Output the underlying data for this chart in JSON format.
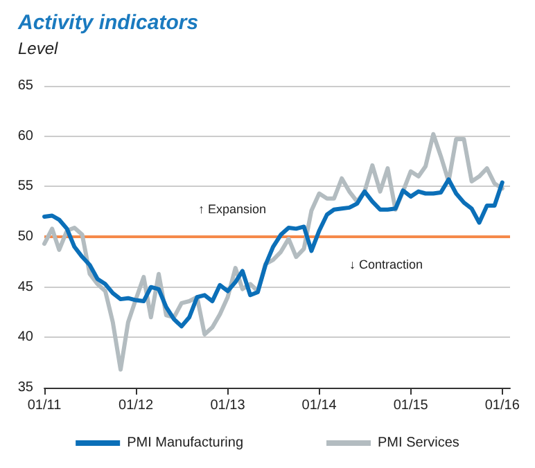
{
  "chart_data": {
    "type": "line",
    "title": "Activity indicators",
    "subtitle": "Level",
    "x": [
      "2011-01",
      "2011-02",
      "2011-03",
      "2011-04",
      "2011-05",
      "2011-06",
      "2011-07",
      "2011-08",
      "2011-09",
      "2011-10",
      "2011-11",
      "2011-12",
      "2012-01",
      "2012-02",
      "2012-03",
      "2012-04",
      "2012-05",
      "2012-06",
      "2012-07",
      "2012-08",
      "2012-09",
      "2012-10",
      "2012-11",
      "2012-12",
      "2013-01",
      "2013-02",
      "2013-03",
      "2013-04",
      "2013-05",
      "2013-06",
      "2013-07",
      "2013-08",
      "2013-09",
      "2013-10",
      "2013-11",
      "2013-12",
      "2014-01",
      "2014-02",
      "2014-03",
      "2014-04",
      "2014-05",
      "2014-06",
      "2014-07",
      "2014-08",
      "2014-09",
      "2014-10",
      "2014-11",
      "2014-12",
      "2015-01",
      "2015-02",
      "2015-03",
      "2015-04",
      "2015-05",
      "2015-06",
      "2015-07",
      "2015-08",
      "2015-09",
      "2015-10",
      "2015-11",
      "2015-12",
      "2016-01"
    ],
    "series": [
      {
        "name": "PMI Manufacturing",
        "color": "#0b6fb8",
        "values": [
          52.0,
          52.1,
          51.7,
          50.8,
          49.0,
          48.0,
          47.2,
          45.8,
          45.3,
          44.4,
          43.8,
          43.9,
          43.7,
          43.6,
          45.0,
          44.8,
          43.0,
          41.8,
          41.1,
          42.0,
          44.0,
          44.2,
          43.6,
          45.2,
          44.6,
          45.5,
          46.6,
          44.2,
          44.5,
          47.2,
          49.0,
          50.2,
          50.9,
          50.8,
          51.0,
          48.6,
          50.6,
          52.2,
          52.7,
          52.8,
          52.9,
          53.3,
          54.5,
          53.5,
          52.7,
          52.7,
          52.8,
          54.6,
          54.0,
          54.5,
          54.3,
          54.3,
          54.4,
          55.7,
          54.3,
          53.4,
          52.8,
          51.4,
          53.1,
          53.1,
          55.4
        ]
      },
      {
        "name": "PMI Services",
        "color": "#b3bcc0",
        "values": [
          49.3,
          50.8,
          48.7,
          50.6,
          50.9,
          50.2,
          46.3,
          45.3,
          44.6,
          41.5,
          36.8,
          41.5,
          43.8,
          46.0,
          42.0,
          46.3,
          42.2,
          42.0,
          43.4,
          43.6,
          44.0,
          40.3,
          41.0,
          42.3,
          44.0,
          46.9,
          44.8,
          45.3,
          44.6,
          47.3,
          47.7,
          48.5,
          49.8,
          48.0,
          48.8,
          52.6,
          54.3,
          53.8,
          53.8,
          55.8,
          54.5,
          53.5,
          54.5,
          57.1,
          54.5,
          56.8,
          52.7,
          54.5,
          56.5,
          56.0,
          57.0,
          60.2,
          58.0,
          55.5,
          59.7,
          59.7,
          55.5,
          56.0,
          56.8,
          55.3,
          54.8
        ]
      }
    ],
    "xlim": [
      "2011-01",
      "2016-02"
    ],
    "xticks": [
      {
        "value": "2011-01",
        "label": "01/11"
      },
      {
        "value": "2012-01",
        "label": "01/12"
      },
      {
        "value": "2013-01",
        "label": "01/13"
      },
      {
        "value": "2014-01",
        "label": "01/14"
      },
      {
        "value": "2015-01",
        "label": "01/15"
      },
      {
        "value": "2016-01",
        "label": "01/16"
      }
    ],
    "ylim": [
      35,
      65
    ],
    "yticks": [
      35,
      40,
      45,
      50,
      55,
      60,
      65
    ],
    "ref_lines": [
      {
        "axis": "y",
        "value": 50,
        "color": "#f5894a"
      }
    ],
    "annotations": [
      "↑ Expansion",
      "↓ Contraction"
    ],
    "grid": "y",
    "legend": "bottom",
    "marker": "none",
    "line_style": "solid"
  }
}
